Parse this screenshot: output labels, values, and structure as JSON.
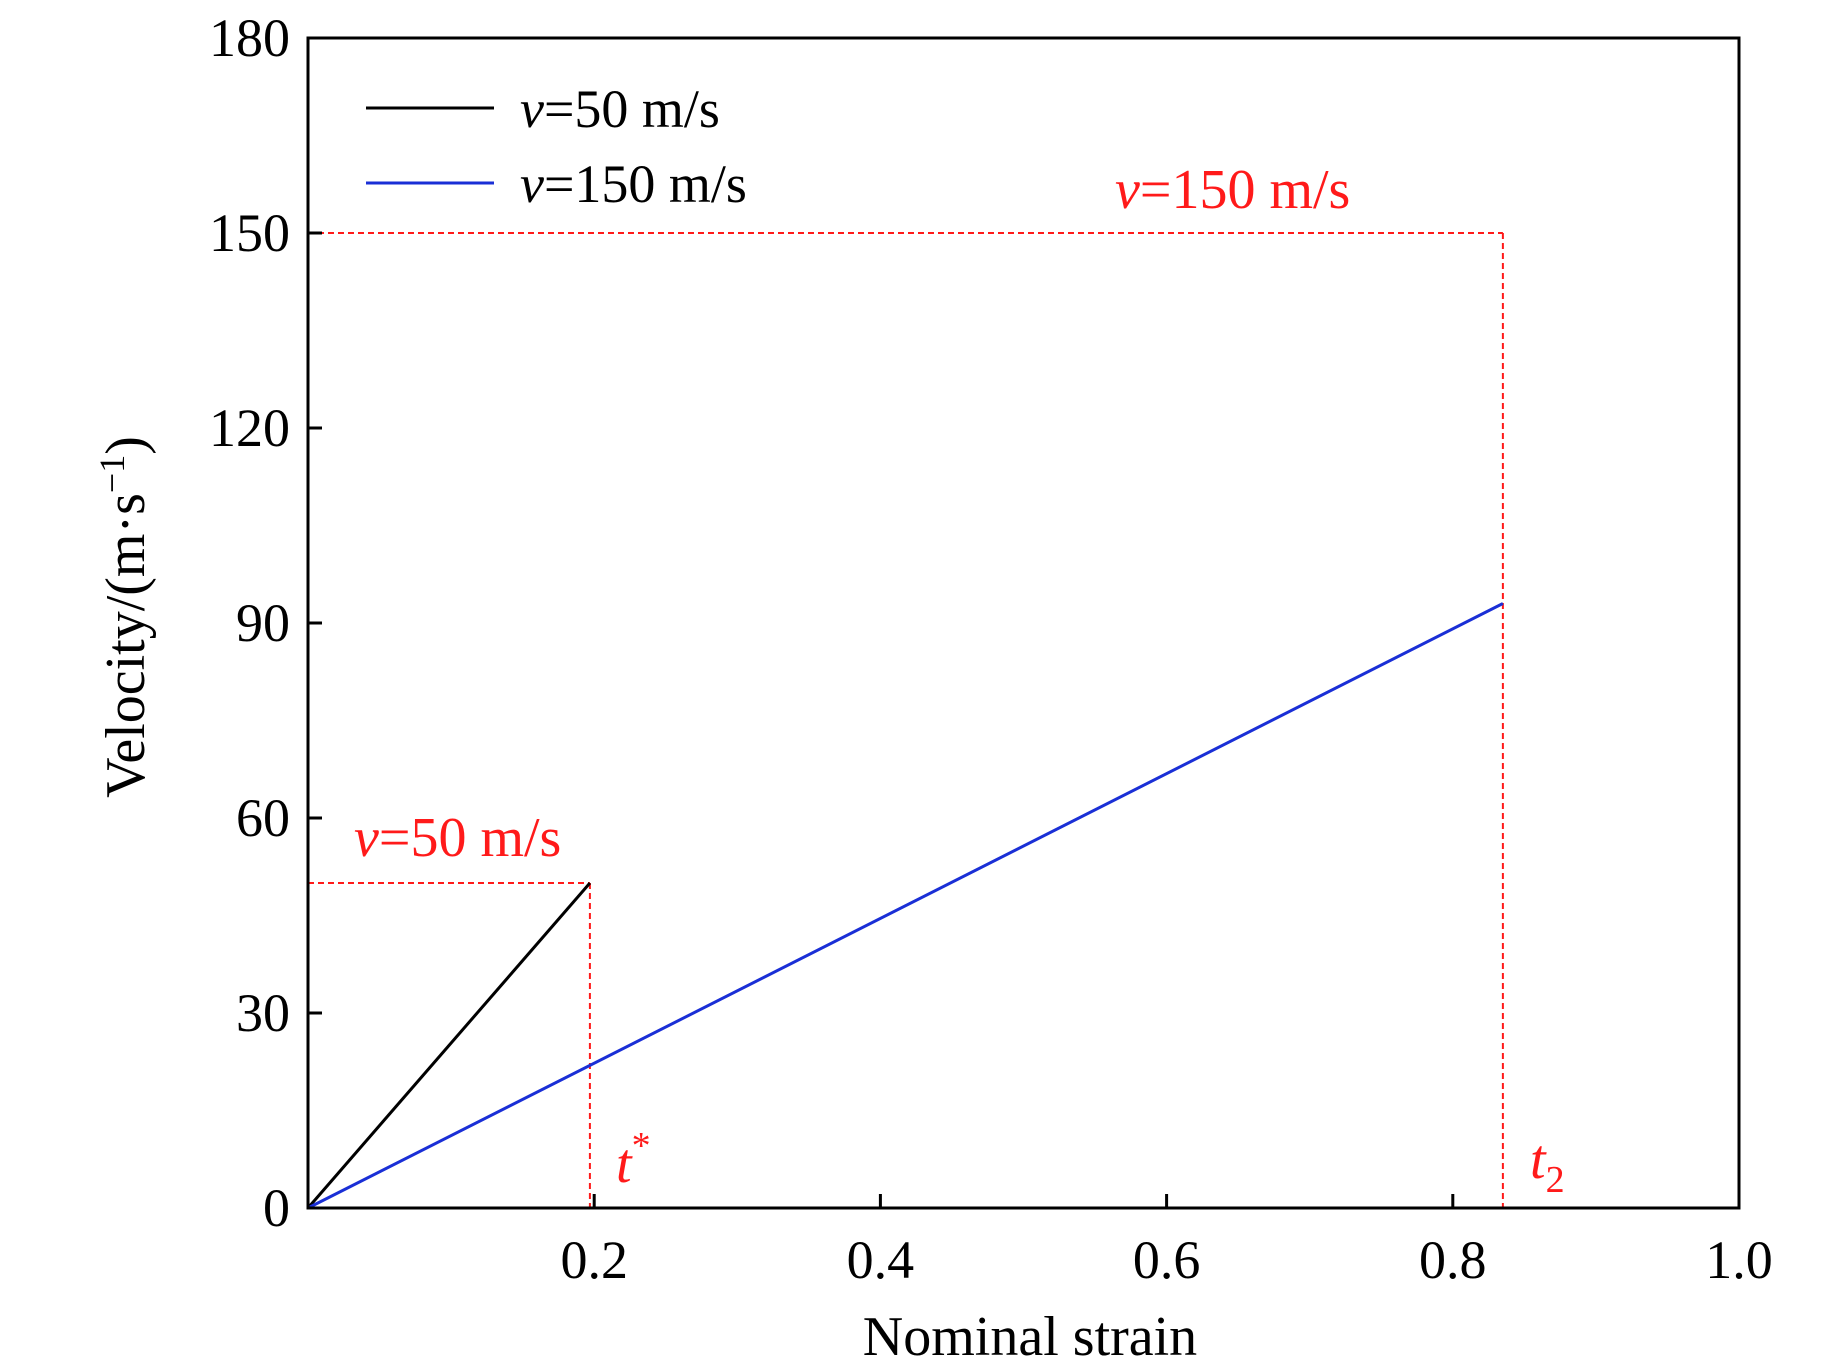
{
  "chart_data": {
    "type": "line",
    "title": "",
    "xlabel": "Nominal strain",
    "ylabel": "Velocity/(m·s",
    "ylabel_sup": "−1",
    "ylabel_close": ")",
    "xlim": [
      0.0,
      1.0
    ],
    "ylim": [
      0,
      180
    ],
    "xticks": [
      0.2,
      0.4,
      0.6,
      0.8,
      1.0
    ],
    "xtick_labels": [
      "0.2",
      "0.4",
      "0.6",
      "0.8",
      "1.0"
    ],
    "yticks": [
      0,
      30,
      60,
      90,
      120,
      150,
      180
    ],
    "ytick_labels": [
      "0",
      "30",
      "60",
      "90",
      "120",
      "150",
      "180"
    ],
    "grid": false,
    "legend_position": "top-left",
    "series": [
      {
        "name_italic": "v",
        "name_rest": "=50 m/s",
        "color": "#000000",
        "x": [
          0.0,
          0.197
        ],
        "y": [
          0,
          50
        ]
      },
      {
        "name_italic": "v",
        "name_rest": "=150 m/s",
        "color": "#1a2fd6",
        "x": [
          0.0,
          0.835
        ],
        "y": [
          0,
          93
        ]
      }
    ],
    "annotations": {
      "color": "#ff1a1a",
      "ref_lines": [
        {
          "id": "v50",
          "x_end": 0.197,
          "y_level": 50
        },
        {
          "id": "v150",
          "x_end": 0.835,
          "y_level": 150
        }
      ],
      "v50_label": {
        "italic": "v",
        "rest": "=50 m/s"
      },
      "v150_label": {
        "italic": "v",
        "rest": "=150 m/s"
      },
      "t_star_label": {
        "main": "t",
        "sup": "*"
      },
      "t2_label": {
        "main": "t",
        "sub": "2"
      }
    }
  }
}
